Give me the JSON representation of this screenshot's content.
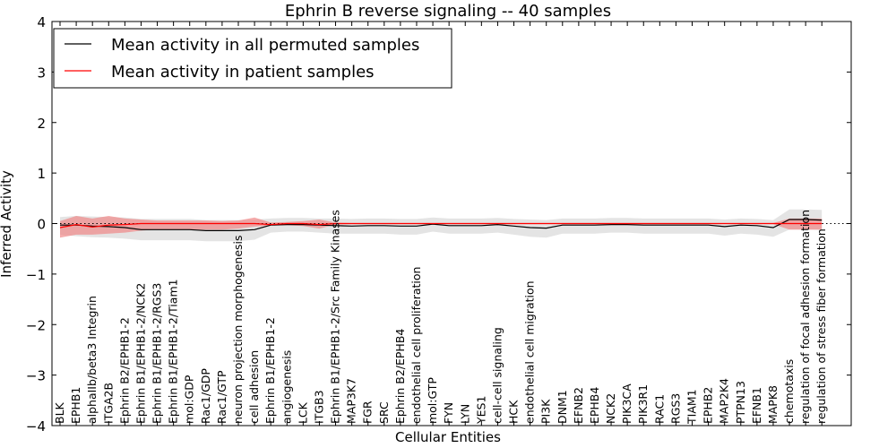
{
  "chart_data": {
    "type": "line",
    "title": "Ephrin B reverse signaling -- 40 samples",
    "xlabel": "Cellular Entities",
    "ylabel": "Inferred Activity",
    "ylim": [
      -4,
      4
    ],
    "yticks": [
      -4,
      -3,
      -2,
      -1,
      0,
      1,
      2,
      3,
      4
    ],
    "ytick_labels": [
      "−4",
      "−3",
      "−2",
      "−1",
      "0",
      "1",
      "2",
      "3",
      "4"
    ],
    "categories": [
      "BLK",
      "EPHB1",
      "alphaIIb/beta3 Integrin",
      "ITGA2B",
      "Ephrin B2/EPHB1-2",
      "Ephrin B1/EPHB1-2/NCK2",
      "Ephrin B1/EPHB1-2/RGS3",
      "Ephrin B1/EPHB1-2/Tiam1",
      "mol:GDP",
      "Rac1/GDP",
      "Rac1/GTP",
      "neuron projection morphogenesis",
      "cell adhesion",
      "Ephrin B1/EPHB1-2",
      "angiogenesis",
      "LCK",
      "ITGB3",
      "Ephrin B1/EPHB1-2/Src Family Kinases",
      "MAP3K7",
      "FGR",
      "SRC",
      "Ephrin B2/EPHB4",
      "endothelial cell proliferation",
      "mol:GTP",
      "FYN",
      "LYN",
      "YES1",
      "cell-cell signaling",
      "HCK",
      "endothelial cell migration",
      "PI3K",
      "DNM1",
      "EFNB2",
      "EPHB4",
      "NCK2",
      "PIK3CA",
      "PIK3R1",
      "RAC1",
      "RGS3",
      "TIAM1",
      "EPHB2",
      "MAP2K4",
      "PTPN13",
      "EFNB1",
      "MAPK8",
      "chemotaxis",
      "regulation of focal adhesion formation",
      "regulation of stress fiber formation"
    ],
    "legend": {
      "placement": "top-left",
      "entries": [
        {
          "label": "Mean activity in all permuted samples",
          "color": "#000000"
        },
        {
          "label": "Mean activity in patient samples",
          "color": "#ff0000"
        }
      ]
    },
    "series": [
      {
        "name": "Mean activity in all permuted samples",
        "color": "#000000",
        "values": [
          -0.03,
          -0.03,
          -0.05,
          -0.06,
          -0.08,
          -0.12,
          -0.12,
          -0.12,
          -0.12,
          -0.14,
          -0.14,
          -0.14,
          -0.12,
          -0.03,
          -0.02,
          -0.02,
          -0.03,
          -0.04,
          -0.05,
          -0.04,
          -0.04,
          -0.05,
          -0.05,
          -0.01,
          -0.04,
          -0.04,
          -0.04,
          -0.02,
          -0.05,
          -0.08,
          -0.09,
          -0.03,
          -0.03,
          -0.03,
          -0.02,
          -0.02,
          -0.03,
          -0.03,
          -0.03,
          -0.03,
          -0.03,
          -0.06,
          -0.03,
          -0.04,
          -0.08,
          0.08,
          0.08,
          0.07
        ],
        "band_lower": [
          -0.22,
          -0.25,
          -0.27,
          -0.28,
          -0.3,
          -0.33,
          -0.33,
          -0.33,
          -0.33,
          -0.35,
          -0.35,
          -0.35,
          -0.32,
          -0.18,
          -0.16,
          -0.16,
          -0.18,
          -0.2,
          -0.2,
          -0.2,
          -0.2,
          -0.22,
          -0.22,
          -0.16,
          -0.2,
          -0.2,
          -0.2,
          -0.18,
          -0.22,
          -0.26,
          -0.28,
          -0.2,
          -0.2,
          -0.2,
          -0.18,
          -0.18,
          -0.2,
          -0.2,
          -0.2,
          -0.2,
          -0.2,
          -0.24,
          -0.2,
          -0.22,
          -0.26,
          -0.12,
          -0.12,
          -0.13
        ],
        "band_upper": [
          0.13,
          0.15,
          0.14,
          0.13,
          0.12,
          0.09,
          0.09,
          0.09,
          0.09,
          0.07,
          0.07,
          0.07,
          0.08,
          0.1,
          0.11,
          0.11,
          0.1,
          0.1,
          0.09,
          0.1,
          0.1,
          0.09,
          0.09,
          0.12,
          0.1,
          0.1,
          0.1,
          0.11,
          0.09,
          0.08,
          0.07,
          0.1,
          0.1,
          0.1,
          0.11,
          0.11,
          0.1,
          0.1,
          0.1,
          0.1,
          0.1,
          0.08,
          0.1,
          0.09,
          0.07,
          0.28,
          0.28,
          0.27
        ]
      },
      {
        "name": "Mean activity in patient samples",
        "color": "#ff0000",
        "values": [
          -0.08,
          -0.02,
          -0.07,
          -0.03,
          -0.02,
          0.0,
          0.0,
          0.0,
          0.0,
          0.0,
          0.0,
          0.0,
          0.0,
          -0.02,
          0.0,
          0.0,
          -0.02,
          0.0,
          0.0,
          0.0,
          0.0,
          0.0,
          0.0,
          0.0,
          0.0,
          0.0,
          0.0,
          0.0,
          0.0,
          0.0,
          0.0,
          0.0,
          0.0,
          0.0,
          0.0,
          0.0,
          0.0,
          0.0,
          0.0,
          0.0,
          0.0,
          0.0,
          0.0,
          0.0,
          0.0,
          0.0,
          0.0,
          0.0
        ],
        "band_lower": [
          -0.28,
          -0.22,
          -0.22,
          -0.2,
          -0.18,
          -0.14,
          -0.12,
          -0.12,
          -0.12,
          -0.12,
          -0.12,
          -0.1,
          -0.06,
          -0.04,
          -0.03,
          -0.05,
          -0.1,
          -0.02,
          -0.01,
          -0.01,
          -0.01,
          -0.01,
          -0.01,
          -0.01,
          -0.01,
          -0.01,
          -0.01,
          -0.01,
          -0.01,
          -0.01,
          -0.01,
          -0.01,
          -0.01,
          -0.01,
          -0.01,
          -0.01,
          -0.01,
          -0.01,
          -0.01,
          -0.01,
          -0.01,
          -0.01,
          -0.01,
          -0.01,
          -0.01,
          -0.12,
          -0.12,
          -0.12
        ],
        "band_upper": [
          0.05,
          0.15,
          0.1,
          0.15,
          0.1,
          0.08,
          0.06,
          0.06,
          0.06,
          0.06,
          0.05,
          0.06,
          0.12,
          0.02,
          0.03,
          0.05,
          0.08,
          0.02,
          0.01,
          0.01,
          0.01,
          0.01,
          0.01,
          0.01,
          0.01,
          0.01,
          0.01,
          0.01,
          0.01,
          0.01,
          0.01,
          0.01,
          0.01,
          0.01,
          0.01,
          0.01,
          0.01,
          0.01,
          0.01,
          0.01,
          0.01,
          0.01,
          0.01,
          0.01,
          0.01,
          0.1,
          0.1,
          0.1
        ]
      }
    ],
    "reference_line": {
      "y": 0,
      "style": "dotted"
    }
  }
}
